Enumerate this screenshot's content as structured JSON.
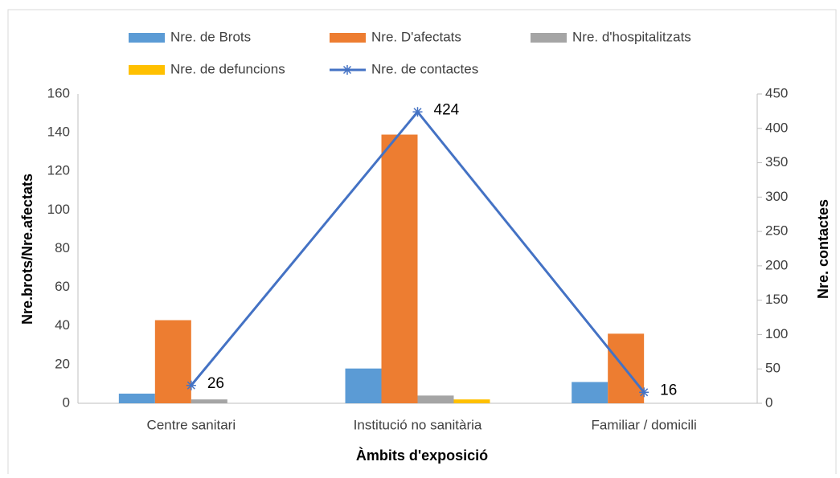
{
  "chart_data": {
    "type": "bar",
    "categories": [
      "Centre sanitari",
      "Institució no sanitària",
      "Familiar / domicili"
    ],
    "series": [
      {
        "name": "Nre. de Brots",
        "color": "#5b9bd5",
        "values": [
          5,
          18,
          11
        ]
      },
      {
        "name": "Nre. D'afectats",
        "color": "#ed7d31",
        "values": [
          43,
          139,
          36
        ]
      },
      {
        "name": "Nre. d'hospitalitzats",
        "color": "#a5a5a5",
        "values": [
          2,
          4,
          0
        ]
      },
      {
        "name": "Nre. de defuncions",
        "color": "#ffc000",
        "values": [
          0,
          2,
          0
        ]
      },
      {
        "name": "Nre. de contactes",
        "color": "#4472c4",
        "type": "line",
        "axis": "y2",
        "values": [
          26,
          424,
          16
        ]
      }
    ],
    "ylim": [
      0,
      160
    ],
    "yticks": [
      0,
      20,
      40,
      60,
      80,
      100,
      120,
      140,
      160
    ],
    "y2lim": [
      0,
      450
    ],
    "y2ticks": [
      0,
      50,
      100,
      150,
      200,
      250,
      300,
      350,
      400,
      450
    ],
    "y_label": "Nre.brots/Nre.afectats",
    "y2_label": "Nre. contactes",
    "x_label": "Àmbits d'exposició",
    "legend": "top"
  }
}
